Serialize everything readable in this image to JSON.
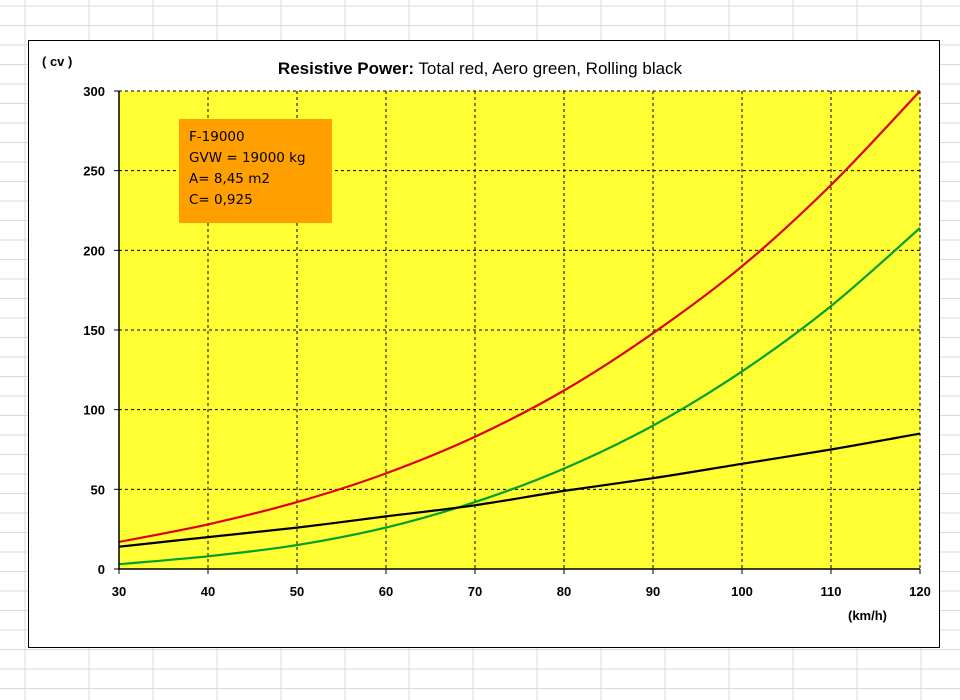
{
  "chart_data": {
    "type": "line",
    "title_bold": "Resistive Power:",
    "title_rest": " Total red, Aero green, Rolling black",
    "ylabel": "( cv )",
    "xlabel": "(km/h)",
    "xlim": [
      30,
      120
    ],
    "ylim": [
      0,
      300
    ],
    "x_ticks": [
      30,
      40,
      50,
      60,
      70,
      80,
      90,
      100,
      110,
      120
    ],
    "y_ticks": [
      0,
      50,
      100,
      150,
      200,
      250,
      300
    ],
    "grid": true,
    "plot_background": "#ffff33",
    "x": [
      30,
      40,
      50,
      60,
      70,
      80,
      90,
      100,
      110,
      120
    ],
    "series": [
      {
        "color": "#e00000",
        "values": [
          17,
          28,
          42,
          60,
          83,
          112,
          148,
          190,
          241,
          300
        ]
      },
      {
        "color": "#00a020",
        "values": [
          3,
          8,
          15,
          26,
          42,
          63,
          90,
          124,
          165,
          214
        ]
      },
      {
        "color": "#000000",
        "values": [
          14,
          20,
          26,
          33,
          40,
          49,
          57,
          66,
          75,
          85
        ]
      }
    ],
    "annotation": {
      "lines": [
        "F-19000",
        "GVW = 19000 kg",
        "A= 8,45 m2",
        "C= 0,925"
      ],
      "background": "#ffa000"
    }
  }
}
